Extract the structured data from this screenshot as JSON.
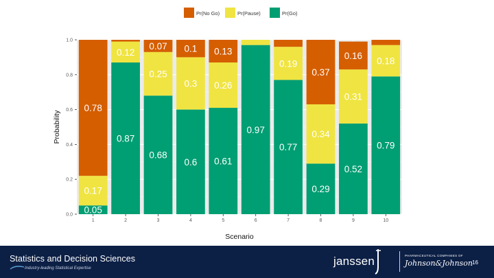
{
  "chart_data": {
    "type": "stacked-bar",
    "title": "",
    "xlabel": "Scenario",
    "ylabel": "Probability",
    "ylim": [
      0,
      1
    ],
    "yticks": [
      "0.0",
      "0.2",
      "0.4",
      "0.6",
      "0.8",
      "1.0"
    ],
    "categories": [
      "1",
      "2",
      "3",
      "4",
      "5",
      "6",
      "7",
      "8",
      "9",
      "10"
    ],
    "grid": true,
    "legend_position": "top",
    "series": [
      {
        "name": "Pr(Go)",
        "color": "#009e73",
        "values": [
          0.05,
          0.87,
          0.68,
          0.6,
          0.61,
          0.97,
          0.77,
          0.29,
          0.52,
          0.79
        ],
        "labels": [
          "0.05",
          "0.87",
          "0.68",
          "0.6",
          "0.61",
          "0.97",
          "0.77",
          "0.29",
          "0.52",
          "0.79"
        ]
      },
      {
        "name": "Pr(Pause)",
        "color": "#f0e442",
        "values": [
          0.17,
          0.12,
          0.25,
          0.3,
          0.26,
          0.03,
          0.19,
          0.34,
          0.31,
          0.18
        ],
        "labels": [
          "0.17",
          "0.12",
          "0.25",
          "0.3",
          "0.26",
          "",
          "0.19",
          "0.34",
          "0.31",
          "0.18"
        ]
      },
      {
        "name": "Pr(No Go)",
        "color": "#d55e00",
        "values": [
          0.78,
          0.01,
          0.07,
          0.1,
          0.13,
          0.0,
          0.04,
          0.37,
          0.16,
          0.03
        ],
        "labels": [
          "0.78",
          "",
          "0.07",
          "0.1",
          "0.13",
          "",
          "",
          "0.37",
          "0.16",
          ""
        ]
      }
    ],
    "legend_order": [
      "Pr(No Go)",
      "Pr(Pause)",
      "Pr(Go)"
    ]
  },
  "footer": {
    "title": "Statistics and Decision Sciences",
    "subtitle": "Industry-leading Statistical Expertise",
    "company": "janssen",
    "pharma_line": "PHARMACEUTICAL COMPANIES OF",
    "parent": "Johnson&Johnson",
    "page_number": "16"
  }
}
